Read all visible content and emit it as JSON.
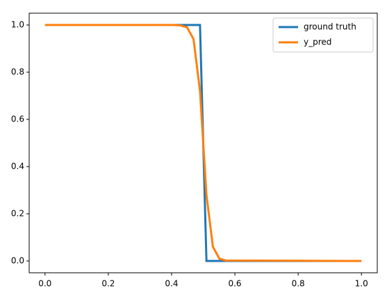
{
  "chart_data": {
    "type": "line",
    "series": [
      {
        "name": "ground truth",
        "color": "#1f77b4",
        "x": [
          0,
          0.4898,
          0.5102,
          1
        ],
        "values": [
          1,
          1,
          0,
          0
        ]
      },
      {
        "name": "y_pred",
        "color": "#ff7f0e",
        "x": [
          0,
          0.4082,
          0.4286,
          0.449,
          0.4694,
          0.4898,
          0.5102,
          0.5306,
          0.551,
          0.5714,
          1
        ],
        "values": [
          1,
          1,
          0.998,
          0.99,
          0.94,
          0.72,
          0.28,
          0.06,
          0.01,
          0.002,
          0
        ]
      }
    ],
    "xlim": [
      -0.05,
      1.05
    ],
    "ylim": [
      -0.05,
      1.05
    ],
    "xticks": [
      {
        "value": 0,
        "label": "0.0"
      },
      0.2,
      0.4,
      0.6,
      0.8,
      {
        "value": 1,
        "label": "1.0"
      }
    ],
    "yticks": [
      {
        "value": 0,
        "label": "0.0"
      },
      0.2,
      0.4,
      0.6,
      0.8,
      {
        "value": 1,
        "label": "1.0"
      }
    ],
    "legend": "upper right"
  }
}
